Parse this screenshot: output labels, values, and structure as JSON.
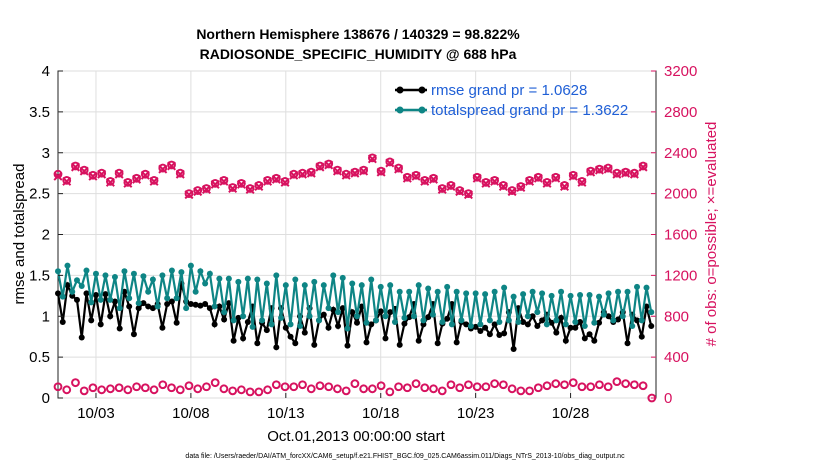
{
  "chart_data": {
    "type": "line",
    "title": [
      "Northern Hemisphere 138676 / 140329 = 98.822%",
      "RADIOSONDE_SPECIFIC_HUMIDITY @ 688 hPa"
    ],
    "xlabel": "Oct.01,2013 00:00:00 start",
    "ylabel": "rmse and totalspread",
    "ylabel_right": "# of obs: o=possible; ×=evaluated",
    "xlim": [
      1,
      32.5
    ],
    "ylim": [
      0,
      4
    ],
    "ylim_right": [
      0,
      3200
    ],
    "x_ticks": [
      3,
      8,
      13,
      18,
      23,
      28
    ],
    "x_tick_labels": [
      "10/03",
      "10/08",
      "10/13",
      "10/18",
      "10/23",
      "10/28"
    ],
    "y_ticks": [
      0,
      0.5,
      1,
      1.5,
      2,
      2.5,
      3,
      3.5,
      4
    ],
    "y_tick_labels": [
      "0",
      "0.5",
      "1",
      "1.5",
      "2",
      "2.5",
      "3",
      "3.5",
      "4"
    ],
    "y_right_ticks": [
      0,
      400,
      800,
      1200,
      1600,
      2000,
      2400,
      2800,
      3200
    ],
    "y_right_tick_labels": [
      "0",
      "400",
      "800",
      "1200",
      "1600",
      "2000",
      "2400",
      "2800",
      "3200"
    ],
    "x_start": 1,
    "x_step": 0.25,
    "series": [
      {
        "name": "rmse grand pr = 1.0628",
        "axis": "left",
        "color": "#000000",
        "marker": "dot",
        "values": [
          1.28,
          0.93,
          1.38,
          1.25,
          1.2,
          0.74,
          1.28,
          0.95,
          1.26,
          0.9,
          1.27,
          1.0,
          1.18,
          0.85,
          1.3,
          1.12,
          0.78,
          1.1,
          1.16,
          1.12,
          1.1,
          1.15,
          0.86,
          1.15,
          1.18,
          0.92,
          1.4,
          1.18,
          1.15,
          1.14,
          1.13,
          1.15,
          1.1,
          0.9,
          1.12,
          0.96,
          1.16,
          0.7,
          0.98,
          0.73,
          0.93,
          1.12,
          0.67,
          0.92,
          0.83,
          1.1,
          0.62,
          1.1,
          0.86,
          0.75,
          0.67,
          1.0,
          0.8,
          1.1,
          0.65,
          0.95,
          1.02,
          0.86,
          1.08,
          0.88,
          1.1,
          0.64,
          1.05,
          0.92,
          1.12,
          0.68,
          0.9,
          0.95,
          1.06,
          0.73,
          1.05,
          1.09,
          0.65,
          0.91,
          0.99,
          1.15,
          0.7,
          0.9,
          0.99,
          1.15,
          0.67,
          0.91,
          0.97,
          1.15,
          0.68,
          0.93,
          0.9,
          0.85,
          0.87,
          0.82,
          0.86,
          0.78,
          0.9,
          0.77,
          0.79,
          1.05,
          0.6,
          1.1,
          0.93,
          0.9,
          1.0,
          0.88,
          0.95,
          1.02,
          0.92,
          0.8,
          0.98,
          0.7,
          0.86,
          0.86,
          0.93,
          0.73,
          0.78,
          0.7,
          0.92,
          1.05,
          1.0,
          0.93,
          0.96,
          1.05,
          0.67,
          1.02,
          0.95,
          0.75,
          1.12,
          0.88
        ]
      },
      {
        "name": "totalspread grand pr = 1.3622",
        "axis": "left",
        "color": "#0e8585",
        "marker": "dot",
        "values": [
          1.55,
          1.24,
          1.62,
          1.3,
          1.44,
          1.37,
          1.56,
          1.17,
          1.52,
          1.2,
          1.5,
          1.2,
          1.48,
          1.1,
          1.55,
          1.22,
          1.52,
          1.16,
          1.49,
          1.3,
          1.45,
          1.12,
          1.5,
          1.22,
          1.56,
          1.22,
          1.54,
          1.1,
          1.62,
          1.3,
          1.55,
          1.4,
          1.52,
          1.12,
          1.46,
          1.05,
          1.46,
          0.95,
          1.42,
          1.0,
          1.46,
          0.87,
          1.45,
          0.95,
          1.4,
          0.9,
          1.5,
          0.98,
          1.38,
          0.9,
          1.45,
          0.88,
          1.38,
          1.0,
          1.42,
          0.95,
          1.38,
          1.1,
          1.5,
          1.05,
          1.47,
          0.85,
          1.4,
          1.0,
          1.38,
          0.92,
          1.45,
          0.95,
          1.36,
          1.0,
          1.38,
          0.93,
          1.3,
          0.98,
          1.3,
          1.0,
          1.38,
          0.95,
          1.34,
          1.02,
          1.3,
          0.93,
          1.36,
          0.9,
          1.3,
          0.95,
          1.28,
          0.88,
          1.28,
          0.9,
          1.27,
          0.95,
          1.3,
          0.93,
          1.35,
          0.95,
          1.24,
          0.93,
          1.27,
          1.0,
          1.3,
          1.05,
          1.28,
          0.9,
          1.25,
          0.95,
          1.3,
          0.9,
          1.25,
          0.93,
          1.26,
          0.88,
          1.26,
          0.92,
          1.24,
          1.02,
          1.28,
          0.95,
          1.3,
          1.0,
          1.3,
          0.88,
          1.36,
          0.95,
          1.35,
          1.05
        ]
      },
      {
        "name": "possible",
        "axis": "right",
        "color": "#d7125f",
        "marker": "o",
        "values": [
          2190,
          2130,
          2270,
          2230,
          2180,
          2200,
          2120,
          2200,
          2110,
          2150,
          2190,
          2130,
          2250,
          2280,
          2200,
          2000,
          2030,
          2050,
          2100,
          2130,
          2060,
          2100,
          2050,
          2080,
          2130,
          2150,
          2120,
          2190,
          2200,
          2210,
          2270,
          2290,
          2230,
          2190,
          2210,
          2230,
          2350,
          2220,
          2310,
          2250,
          2160,
          2180,
          2130,
          2150,
          2050,
          2080,
          2030,
          2000,
          2160,
          2110,
          2130,
          2080,
          2030,
          2070,
          2130,
          2160,
          2110,
          2160,
          2080,
          2180,
          2120,
          2220,
          2240,
          2250,
          2200,
          2210,
          2200,
          2270
        ]
      },
      {
        "name": "evaluated",
        "axis": "right",
        "color": "#d7125f",
        "marker": "x",
        "values": [
          2170,
          2120,
          2260,
          2220,
          2170,
          2190,
          2110,
          2190,
          2100,
          2140,
          2180,
          2120,
          2240,
          2270,
          2190,
          1990,
          2020,
          2040,
          2090,
          2120,
          2050,
          2090,
          2040,
          2070,
          2120,
          2140,
          2110,
          2180,
          2190,
          2200,
          2260,
          2280,
          2220,
          2180,
          2200,
          2220,
          2340,
          2210,
          2300,
          2240,
          2150,
          2170,
          2120,
          2140,
          2040,
          2070,
          2020,
          1990,
          2150,
          2100,
          2120,
          2070,
          2020,
          2060,
          2120,
          2150,
          2100,
          2150,
          2070,
          2170,
          2110,
          2210,
          2230,
          2240,
          2190,
          2200,
          2190,
          2260
        ]
      },
      {
        "name": "possible-low",
        "axis": "right",
        "color": "#d7125f",
        "marker": "o",
        "values": [
          110,
          80,
          150,
          70,
          100,
          80,
          90,
          100,
          80,
          110,
          100,
          80,
          130,
          100,
          80,
          120,
          90,
          110,
          150,
          90,
          70,
          80,
          60,
          60,
          80,
          130,
          110,
          110,
          130,
          90,
          120,
          110,
          90,
          70,
          140,
          90,
          90,
          120,
          60,
          110,
          100,
          140,
          100,
          90,
          70,
          130,
          100,
          130,
          110,
          110,
          140,
          130,
          90,
          70,
          70,
          100,
          120,
          140,
          130,
          150,
          110,
          110,
          130,
          110,
          160,
          140,
          130,
          120,
          0
        ]
      }
    ],
    "secondary_x": {
      "possible": {
        "start": 1,
        "step": 0.46
      },
      "evaluated": {
        "start": 1,
        "step": 0.46
      },
      "possible-low": {
        "start": 1,
        "step": 0.46
      }
    },
    "legend_position": "top-right",
    "footnote": "data file: /Users/raeder/DAI/ATM_forcXX/CAM6_setup/f.e21.FHIST_BGC.f09_025.CAM6assim.011/Diags_NTrS_2013-10/obs_diag_output.nc"
  }
}
